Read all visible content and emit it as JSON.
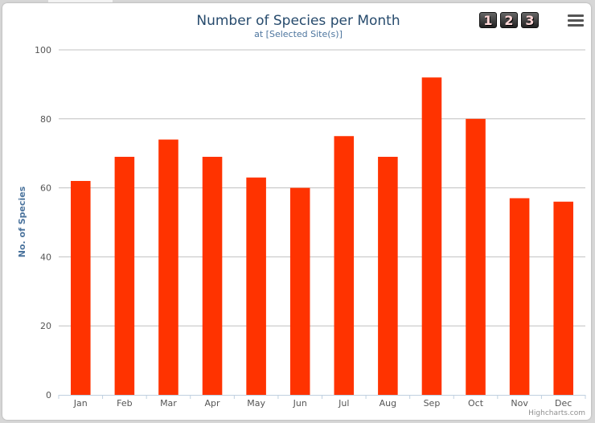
{
  "chart_data": {
    "type": "bar",
    "title": "Number of Species per Month",
    "subtitle": "at [Selected Site(s)]",
    "categories": [
      "Jan",
      "Feb",
      "Mar",
      "Apr",
      "May",
      "Jun",
      "Jul",
      "Aug",
      "Sep",
      "Oct",
      "Nov",
      "Dec"
    ],
    "values": [
      62,
      69,
      74,
      69,
      63,
      60,
      75,
      69,
      92,
      80,
      57,
      56
    ],
    "xlabel": "",
    "ylabel": "No. of Species",
    "ylim": [
      0,
      100
    ],
    "yticks": [
      0,
      20,
      40,
      60,
      80,
      100
    ],
    "grid": true,
    "bar_color": "#ff3300",
    "credits": "Highcharts.com"
  },
  "toolbar": {
    "rank_buttons": [
      "1",
      "2",
      "3"
    ],
    "menu_icon": "hamburger-menu-icon"
  },
  "colors": {
    "title": "#274b6d",
    "axis_label": "#4d759e",
    "grid": "#c0c0c0"
  }
}
